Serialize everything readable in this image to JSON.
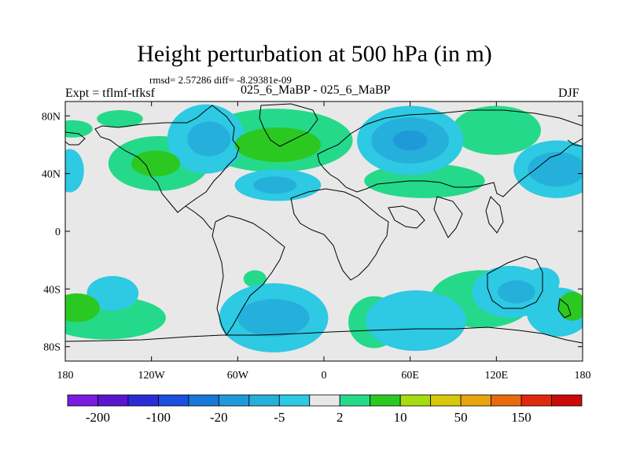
{
  "header": {
    "title": "Height perturbation at 500 hPa (in m)",
    "stats": "rmsd= 2.57286 diff= -8.29381e-09",
    "left_label": "Expt = tflmf-tfksf",
    "center_label": "025_6_MaBP - 025_6_MaBP",
    "right_label": "DJF"
  },
  "chart_data": {
    "type": "contour-map",
    "title": "Height perturbation at 500 hPa (in m)",
    "subtitle": "025_6_MaBP - 025_6_MaBP",
    "units": "m",
    "season": "DJF",
    "xlim": [
      -180,
      180
    ],
    "ylim": [
      -90,
      90
    ],
    "x_ticks": [
      {
        "value": -180,
        "label": "180"
      },
      {
        "value": -120,
        "label": "120W"
      },
      {
        "value": -60,
        "label": "60W"
      },
      {
        "value": 0,
        "label": "0"
      },
      {
        "value": 60,
        "label": "60E"
      },
      {
        "value": 120,
        "label": "120E"
      },
      {
        "value": 180,
        "label": "180"
      }
    ],
    "y_ticks": [
      {
        "value": 80,
        "label": "80N"
      },
      {
        "value": 40,
        "label": "40N"
      },
      {
        "value": 0,
        "label": "0"
      },
      {
        "value": -40,
        "label": "40S"
      },
      {
        "value": -80,
        "label": "80S"
      }
    ],
    "levels": [
      -200,
      -150,
      -100,
      -50,
      -20,
      -10,
      -5,
      -2,
      2,
      5,
      10,
      20,
      50,
      100,
      150,
      200
    ],
    "colorbar_labels": [
      {
        "after_bin": 0,
        "label": "-200"
      },
      {
        "after_bin": 2,
        "label": "-100"
      },
      {
        "after_bin": 4,
        "label": "-20"
      },
      {
        "after_bin": 6,
        "label": "-5"
      },
      {
        "after_bin": 8,
        "label": "2"
      },
      {
        "after_bin": 10,
        "label": "10"
      },
      {
        "after_bin": 12,
        "label": "50"
      },
      {
        "after_bin": 14,
        "label": "150"
      }
    ],
    "colors": [
      "#7a1be0",
      "#5a16cf",
      "#2c2cd6",
      "#1a4fe0",
      "#1677d6",
      "#1f9ad9",
      "#25b0dc",
      "#2ec9e2",
      "#e8e8e8",
      "#25d98a",
      "#2cc822",
      "#a6dc10",
      "#d8c80c",
      "#e8a40c",
      "#e86a0c",
      "#e0280c",
      "#cc0a0a"
    ],
    "anomalies": [
      {
        "lon": -142,
        "lat": 78,
        "rx": 16,
        "ry": 6,
        "level": "+2"
      },
      {
        "lon": -175,
        "lat": 71,
        "rx": 14,
        "ry": 6,
        "level": "+2"
      },
      {
        "lon": -115,
        "lat": 47,
        "rx": 35,
        "ry": 19,
        "level": "+2"
      },
      {
        "lon": -117,
        "lat": 47,
        "rx": 17,
        "ry": 9,
        "level": "+10"
      },
      {
        "lon": -82,
        "lat": 64,
        "rx": 27,
        "ry": 24,
        "level": "-2"
      },
      {
        "lon": -80,
        "lat": 64,
        "rx": 15,
        "ry": 12,
        "level": "-5"
      },
      {
        "lon": -34,
        "lat": 63,
        "rx": 54,
        "ry": 22,
        "level": "+2"
      },
      {
        "lon": -32,
        "lat": 60,
        "rx": 30,
        "ry": 12,
        "level": "+10"
      },
      {
        "lon": -32,
        "lat": 32,
        "rx": 30,
        "ry": 11,
        "level": "-2"
      },
      {
        "lon": -34,
        "lat": 32,
        "rx": 15,
        "ry": 6,
        "level": "-5"
      },
      {
        "lon": 60,
        "lat": 63,
        "rx": 37,
        "ry": 24,
        "level": "-2"
      },
      {
        "lon": 60,
        "lat": 63,
        "rx": 27,
        "ry": 16,
        "level": "-5"
      },
      {
        "lon": 60,
        "lat": 63,
        "rx": 12,
        "ry": 7,
        "level": "-10"
      },
      {
        "lon": 120,
        "lat": 70,
        "rx": 31,
        "ry": 17,
        "level": "+2"
      },
      {
        "lon": 70,
        "lat": 35,
        "rx": 42,
        "ry": 12,
        "level": "+2"
      },
      {
        "lon": 162,
        "lat": 43,
        "rx": 30,
        "ry": 20,
        "level": "-2"
      },
      {
        "lon": 162,
        "lat": 43,
        "rx": 20,
        "ry": 12,
        "level": "-5"
      },
      {
        "lon": -177,
        "lat": 42,
        "rx": 10,
        "ry": 15,
        "level": "-2"
      },
      {
        "lon": -147,
        "lat": -43,
        "rx": 18,
        "ry": 12,
        "level": "-2"
      },
      {
        "lon": -152,
        "lat": -60,
        "rx": 42,
        "ry": 15,
        "level": "+2"
      },
      {
        "lon": -172,
        "lat": -53,
        "rx": 16,
        "ry": 10,
        "level": "+10"
      },
      {
        "lon": -35,
        "lat": -60,
        "rx": 38,
        "ry": 24,
        "level": "-2"
      },
      {
        "lon": -35,
        "lat": -60,
        "rx": 25,
        "ry": 13,
        "level": "-5"
      },
      {
        "lon": 35,
        "lat": -63,
        "rx": 18,
        "ry": 18,
        "level": "+2"
      },
      {
        "lon": 64,
        "lat": -62,
        "rx": 35,
        "ry": 21,
        "level": "-2"
      },
      {
        "lon": 130,
        "lat": -42,
        "rx": 27,
        "ry": 18,
        "level": "-2"
      },
      {
        "lon": 134,
        "lat": -42,
        "rx": 13,
        "ry": 8,
        "level": "-5"
      },
      {
        "lon": 110,
        "lat": -47,
        "rx": 36,
        "ry": 20,
        "level": "+2"
      },
      {
        "lon": 163,
        "lat": -56,
        "rx": 22,
        "ry": 17,
        "level": "-2"
      },
      {
        "lon": 173,
        "lat": -52,
        "rx": 10,
        "ry": 10,
        "level": "+10"
      },
      {
        "lon": 152,
        "lat": -35,
        "rx": 12,
        "ry": 10,
        "level": "-2"
      },
      {
        "lon": -48,
        "lat": -33,
        "rx": 8,
        "ry": 6,
        "level": "+2"
      }
    ]
  }
}
